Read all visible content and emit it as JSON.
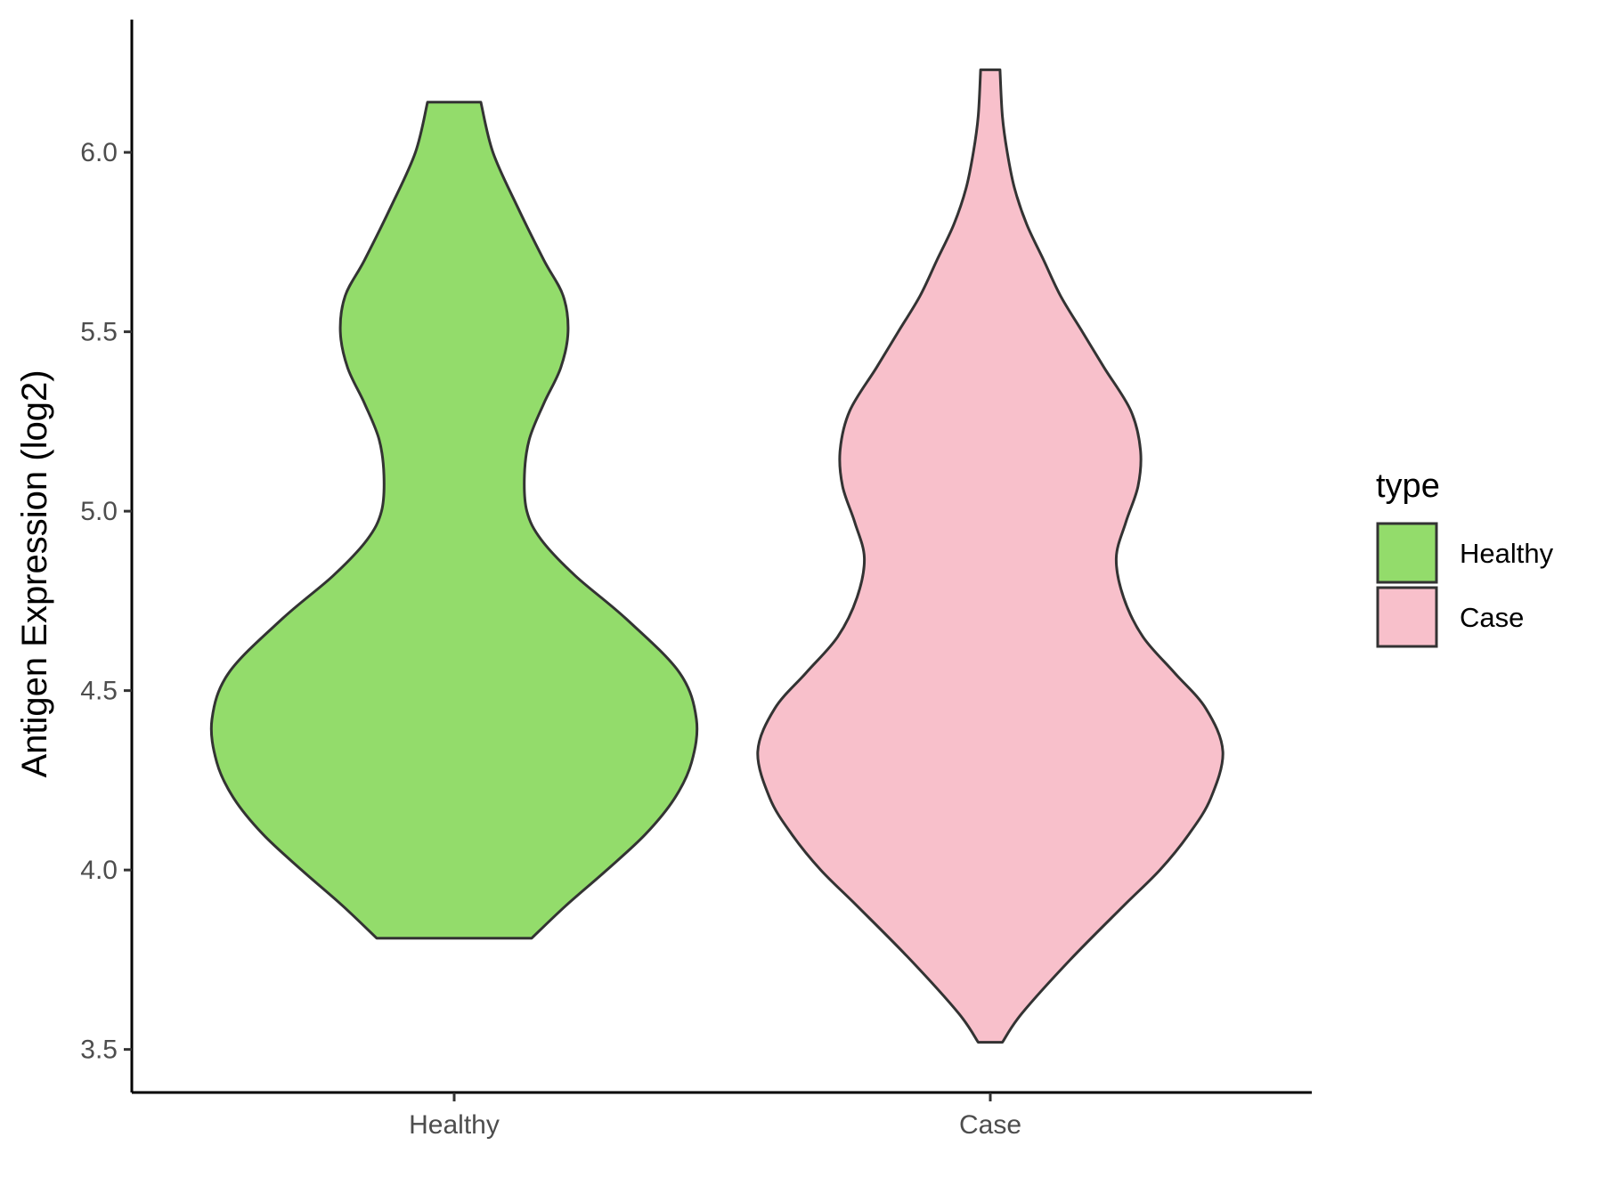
{
  "chart_data": {
    "type": "violin",
    "categories": [
      "Healthy",
      "Case"
    ],
    "ylabel": "Antigen Expression (log2)",
    "xlabel": "",
    "ylim": [
      3.38,
      6.37
    ],
    "yticks": [
      3.5,
      4.0,
      4.5,
      5.0,
      5.5,
      6.0
    ],
    "ytick_labels": [
      "3.5",
      "4.0",
      "4.5",
      "5.0",
      "5.5",
      "6.0"
    ],
    "grid": false,
    "legend": {
      "title": "type",
      "position": "right",
      "entries": [
        "Healthy",
        "Case"
      ]
    },
    "series": [
      {
        "name": "Healthy",
        "color": "#93DC6B",
        "range": [
          3.81,
          6.14
        ],
        "density": [
          [
            3.81,
            0.32
          ],
          [
            3.9,
            0.46
          ],
          [
            4.0,
            0.63
          ],
          [
            4.1,
            0.79
          ],
          [
            4.2,
            0.91
          ],
          [
            4.3,
            0.98
          ],
          [
            4.42,
            1.0
          ],
          [
            4.55,
            0.93
          ],
          [
            4.7,
            0.71
          ],
          [
            4.82,
            0.5
          ],
          [
            4.92,
            0.36
          ],
          [
            5.0,
            0.3
          ],
          [
            5.1,
            0.29
          ],
          [
            5.2,
            0.31
          ],
          [
            5.3,
            0.37
          ],
          [
            5.4,
            0.44
          ],
          [
            5.5,
            0.47
          ],
          [
            5.6,
            0.45
          ],
          [
            5.7,
            0.37
          ],
          [
            5.85,
            0.26
          ],
          [
            6.0,
            0.16
          ],
          [
            6.14,
            0.11
          ]
        ]
      },
      {
        "name": "Case",
        "color": "#F8C0CB",
        "range": [
          3.52,
          6.23
        ],
        "density": [
          [
            3.52,
            0.05
          ],
          [
            3.6,
            0.13
          ],
          [
            3.75,
            0.33
          ],
          [
            3.9,
            0.55
          ],
          [
            4.0,
            0.7
          ],
          [
            4.1,
            0.82
          ],
          [
            4.2,
            0.91
          ],
          [
            4.33,
            0.96
          ],
          [
            4.45,
            0.89
          ],
          [
            4.55,
            0.76
          ],
          [
            4.65,
            0.63
          ],
          [
            4.76,
            0.55
          ],
          [
            4.87,
            0.52
          ],
          [
            4.97,
            0.56
          ],
          [
            5.07,
            0.61
          ],
          [
            5.17,
            0.62
          ],
          [
            5.28,
            0.58
          ],
          [
            5.4,
            0.47
          ],
          [
            5.5,
            0.38
          ],
          [
            5.6,
            0.29
          ],
          [
            5.7,
            0.22
          ],
          [
            5.8,
            0.15
          ],
          [
            5.9,
            0.1
          ],
          [
            6.0,
            0.07
          ],
          [
            6.1,
            0.05
          ],
          [
            6.23,
            0.04
          ]
        ]
      }
    ]
  }
}
